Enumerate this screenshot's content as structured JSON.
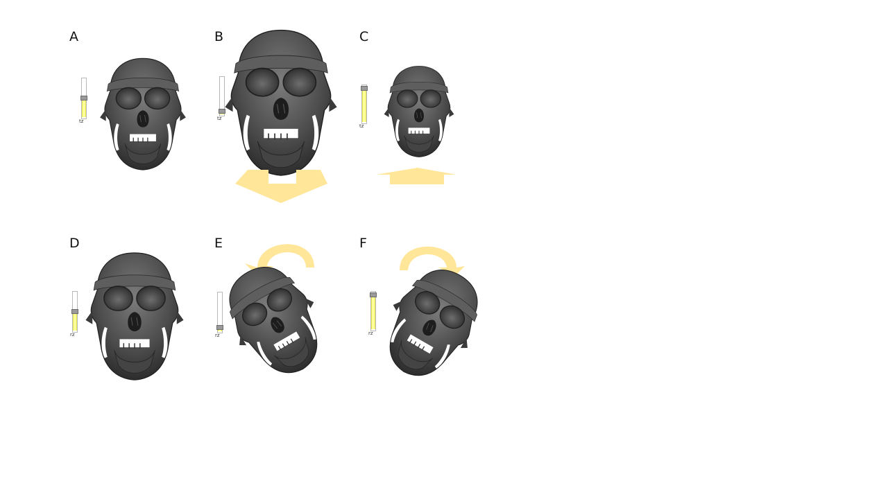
{
  "colors": {
    "bone_dark": "#2f2f2f",
    "bone_mid": "#5a5a5a",
    "bone_light": "#8a8a8a",
    "arrow": "#ffe699",
    "slider_fill": "#ffff99",
    "slider_thumb": "#9a9a9a"
  },
  "panels": [
    {
      "id": "A",
      "label": "A",
      "slider_caption": "tz",
      "slider_level": 0.5,
      "arrow": "none"
    },
    {
      "id": "B",
      "label": "B",
      "slider_caption": "tz",
      "slider_level": 0.05,
      "arrow": "down"
    },
    {
      "id": "C",
      "label": "C",
      "slider_caption": "tz",
      "slider_level": 0.95,
      "arrow": "up"
    },
    {
      "id": "D",
      "label": "D",
      "slider_caption": "rz",
      "slider_level": 0.5,
      "arrow": "none"
    },
    {
      "id": "E",
      "label": "E",
      "slider_caption": "rz",
      "slider_level": 0.05,
      "arrow": "rotate-counterclockwise"
    },
    {
      "id": "F",
      "label": "F",
      "slider_caption": "rz",
      "slider_level": 0.95,
      "arrow": "rotate-clockwise"
    }
  ]
}
